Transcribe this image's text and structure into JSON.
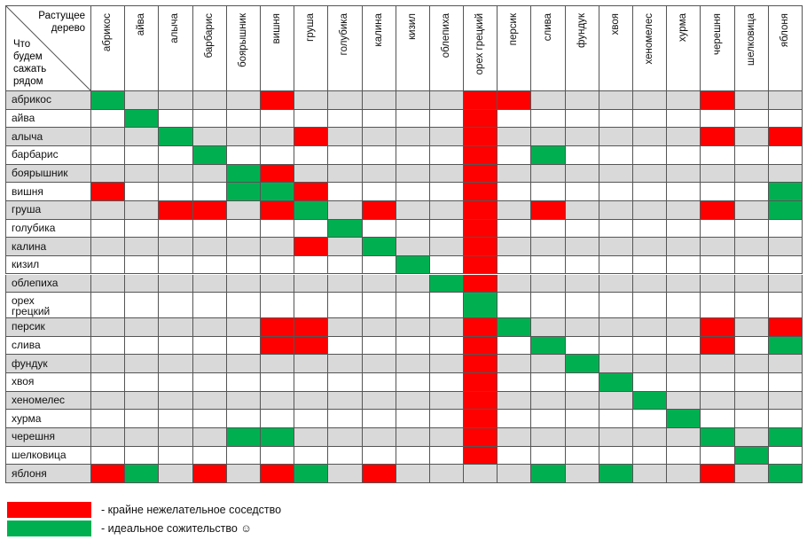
{
  "table": {
    "corner": {
      "top": "Растущее дерево",
      "left": "Что будем сажать рядом"
    },
    "columns": [
      "абрикос",
      "айва",
      "алыча",
      "барбарис",
      "боярышник",
      "вишня",
      "груша",
      "голубика",
      "калина",
      "кизил",
      "облепиха",
      "орех грецкий",
      "персик",
      "слива",
      "фундук",
      "хвоя",
      "хеномелес",
      "хурма",
      "черешня",
      "шелковица",
      "яблоня"
    ],
    "rows": [
      {
        "label": "абрикос",
        "cells": [
          "#00b050",
          null,
          null,
          null,
          null,
          "#ff0000",
          null,
          null,
          null,
          null,
          null,
          "#ff0000",
          "#ff0000",
          null,
          null,
          null,
          null,
          null,
          "#ff0000",
          null,
          null
        ]
      },
      {
        "label": "айва",
        "cells": [
          null,
          "#00b050",
          null,
          null,
          null,
          null,
          null,
          null,
          null,
          null,
          null,
          "#ff0000",
          null,
          null,
          null,
          null,
          null,
          null,
          null,
          null,
          null
        ]
      },
      {
        "label": "алыча",
        "cells": [
          null,
          null,
          "#00b050",
          null,
          null,
          null,
          "#ff0000",
          null,
          null,
          null,
          null,
          "#ff0000",
          null,
          null,
          null,
          null,
          null,
          null,
          "#ff0000",
          null,
          "#ff0000"
        ]
      },
      {
        "label": "барбарис",
        "cells": [
          null,
          null,
          null,
          "#00b050",
          null,
          null,
          null,
          null,
          null,
          null,
          null,
          "#ff0000",
          null,
          "#00b050",
          null,
          null,
          null,
          null,
          null,
          null,
          null
        ]
      },
      {
        "label": "боярышник",
        "cells": [
          null,
          null,
          null,
          null,
          "#00b050",
          "#ff0000",
          null,
          null,
          null,
          null,
          null,
          "#ff0000",
          null,
          null,
          null,
          null,
          null,
          null,
          null,
          null,
          null
        ]
      },
      {
        "label": "вишня",
        "cells": [
          "#ff0000",
          null,
          null,
          null,
          "#00b050",
          "#00b050",
          "#ff0000",
          null,
          null,
          null,
          null,
          "#ff0000",
          null,
          null,
          null,
          null,
          null,
          null,
          null,
          null,
          "#00b050"
        ]
      },
      {
        "label": "груша",
        "cells": [
          null,
          null,
          "#ff0000",
          "#ff0000",
          null,
          "#ff0000",
          "#00b050",
          null,
          "#ff0000",
          null,
          null,
          "#ff0000",
          null,
          "#ff0000",
          null,
          null,
          null,
          null,
          "#ff0000",
          null,
          "#00b050"
        ]
      },
      {
        "label": "голубика",
        "cells": [
          null,
          null,
          null,
          null,
          null,
          null,
          null,
          "#00b050",
          null,
          null,
          null,
          "#ff0000",
          null,
          null,
          null,
          null,
          null,
          null,
          null,
          null,
          null
        ]
      },
      {
        "label": "калина",
        "cells": [
          null,
          null,
          null,
          null,
          null,
          null,
          "#ff0000",
          null,
          "#00b050",
          null,
          null,
          "#ff0000",
          null,
          null,
          null,
          null,
          null,
          null,
          null,
          null,
          null
        ]
      },
      {
        "label": "кизил",
        "cells": [
          null,
          null,
          null,
          null,
          null,
          null,
          null,
          null,
          null,
          "#00b050",
          null,
          "#ff0000",
          null,
          null,
          null,
          null,
          null,
          null,
          null,
          null,
          null
        ]
      },
      {
        "label": "облепиха",
        "cells": [
          null,
          null,
          null,
          null,
          null,
          null,
          null,
          null,
          null,
          null,
          "#00b050",
          "#ff0000",
          null,
          null,
          null,
          null,
          null,
          null,
          null,
          null,
          null
        ]
      },
      {
        "label": "орех грецкий",
        "cells": [
          null,
          null,
          null,
          null,
          null,
          null,
          null,
          null,
          null,
          null,
          null,
          "#00b050",
          null,
          null,
          null,
          null,
          null,
          null,
          null,
          null,
          null
        ]
      },
      {
        "label": "персик",
        "cells": [
          null,
          null,
          null,
          null,
          null,
          "#ff0000",
          "#ff0000",
          null,
          null,
          null,
          null,
          "#ff0000",
          "#00b050",
          null,
          null,
          null,
          null,
          null,
          "#ff0000",
          null,
          "#ff0000"
        ]
      },
      {
        "label": "слива",
        "cells": [
          null,
          null,
          null,
          null,
          null,
          "#ff0000",
          "#ff0000",
          null,
          null,
          null,
          null,
          "#ff0000",
          null,
          "#00b050",
          null,
          null,
          null,
          null,
          "#ff0000",
          null,
          "#00b050"
        ]
      },
      {
        "label": "фундук",
        "cells": [
          null,
          null,
          null,
          null,
          null,
          null,
          null,
          null,
          null,
          null,
          null,
          "#ff0000",
          null,
          null,
          "#00b050",
          null,
          null,
          null,
          null,
          null,
          null
        ]
      },
      {
        "label": "хвоя",
        "cells": [
          null,
          null,
          null,
          null,
          null,
          null,
          null,
          null,
          null,
          null,
          null,
          "#ff0000",
          null,
          null,
          null,
          "#00b050",
          null,
          null,
          null,
          null,
          null
        ]
      },
      {
        "label": "хеномелес",
        "cells": [
          null,
          null,
          null,
          null,
          null,
          null,
          null,
          null,
          null,
          null,
          null,
          "#ff0000",
          null,
          null,
          null,
          null,
          "#00b050",
          null,
          null,
          null,
          null
        ]
      },
      {
        "label": "хурма",
        "cells": [
          null,
          null,
          null,
          null,
          null,
          null,
          null,
          null,
          null,
          null,
          null,
          "#ff0000",
          null,
          null,
          null,
          null,
          null,
          "#00b050",
          null,
          null,
          null
        ]
      },
      {
        "label": "черешня",
        "cells": [
          null,
          null,
          null,
          null,
          "#00b050",
          "#00b050",
          null,
          null,
          null,
          null,
          null,
          "#ff0000",
          null,
          null,
          null,
          null,
          null,
          null,
          "#00b050",
          null,
          "#00b050"
        ]
      },
      {
        "label": "шелковица",
        "cells": [
          null,
          null,
          null,
          null,
          null,
          null,
          null,
          null,
          null,
          null,
          null,
          "#ff0000",
          null,
          null,
          null,
          null,
          null,
          null,
          null,
          "#00b050",
          null
        ]
      },
      {
        "label": "яблоня",
        "cells": [
          "#ff0000",
          "#00b050",
          null,
          "#ff0000",
          null,
          "#ff0000",
          "#00b050",
          null,
          "#ff0000",
          null,
          null,
          null,
          null,
          "#00b050",
          null,
          "#00b050",
          null,
          null,
          "#ff0000",
          null,
          "#00b050"
        ]
      }
    ]
  },
  "legend": [
    {
      "color": "#ff0000",
      "label": "- крайне нежелательное соседство"
    },
    {
      "color": "#00b050",
      "label": "- идеальное сожительство ☺"
    }
  ]
}
